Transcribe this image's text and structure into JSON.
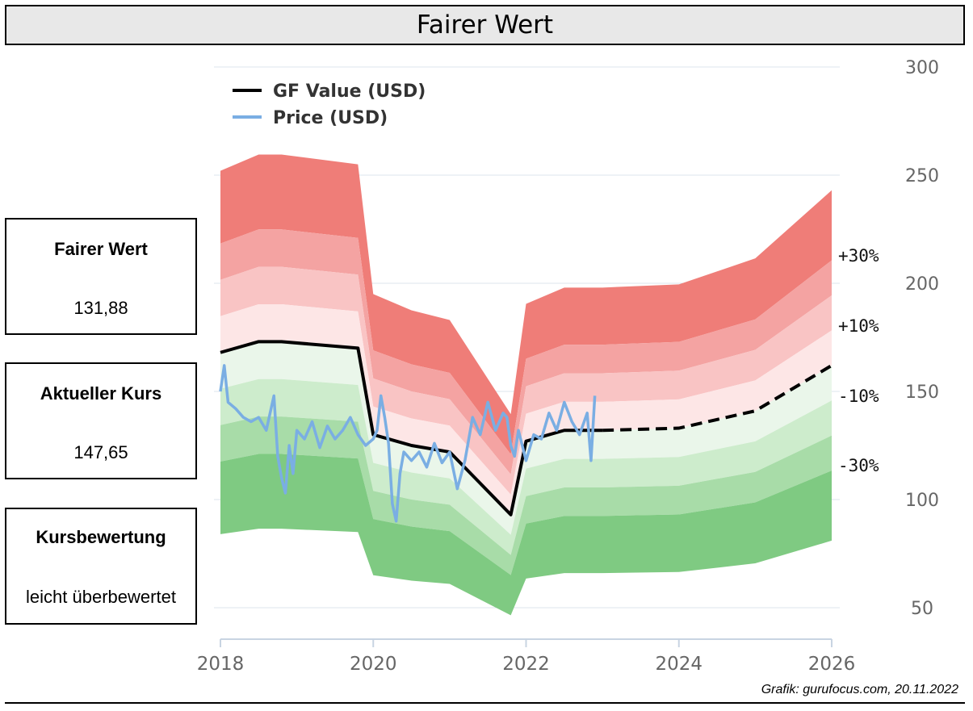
{
  "header": {
    "title": "Fairer Wert"
  },
  "cards": [
    {
      "label": "Fairer Wert",
      "value": "131,88"
    },
    {
      "label": "Aktueller Kurs",
      "value": "147,65"
    },
    {
      "label": "Kursbewertung",
      "value": "leicht überbewertet"
    }
  ],
  "source": "Grafik: gurufocus.com, 20.11.2022",
  "chart_data": {
    "type": "line",
    "legend": [
      {
        "name": "GF Value (USD)",
        "color": "#000000"
      },
      {
        "name": "Price (USD)",
        "color": "#7aaee3"
      }
    ],
    "legend_position": "top-left",
    "xlim": [
      2018,
      2026
    ],
    "ylim": [
      40,
      300
    ],
    "x_ticks": [
      "2018",
      "2020",
      "2022",
      "2024",
      "2026"
    ],
    "y_ticks": [
      "300",
      "250",
      "200",
      "150",
      "100",
      "50"
    ],
    "band_labels": [
      "+30%",
      "+10%",
      "-10%",
      "-30%"
    ],
    "grid": true,
    "gf_value": {
      "x": [
        2018.0,
        2018.5,
        2018.8,
        2019.8,
        2020.0,
        2020.5,
        2021.0,
        2021.8,
        2022.0,
        2022.5,
        2023.0,
        2024.0,
        2025.0,
        2026.0
      ],
      "y": [
        168,
        173,
        173,
        170,
        130,
        125,
        122,
        93,
        127,
        132,
        132,
        133,
        141,
        162
      ],
      "actual": [
        true,
        true,
        true,
        true,
        true,
        true,
        true,
        true,
        true,
        true,
        true,
        false,
        false,
        false
      ]
    },
    "price": {
      "x": [
        2018.0,
        2018.05,
        2018.1,
        2018.2,
        2018.3,
        2018.4,
        2018.5,
        2018.6,
        2018.7,
        2018.75,
        2018.8,
        2018.85,
        2018.9,
        2018.95,
        2019.0,
        2019.1,
        2019.2,
        2019.3,
        2019.4,
        2019.5,
        2019.6,
        2019.7,
        2019.8,
        2019.9,
        2020.0,
        2020.05,
        2020.1,
        2020.15,
        2020.2,
        2020.25,
        2020.3,
        2020.35,
        2020.4,
        2020.5,
        2020.6,
        2020.7,
        2020.8,
        2020.9,
        2021.0,
        2021.1,
        2021.2,
        2021.3,
        2021.4,
        2021.5,
        2021.6,
        2021.7,
        2021.75,
        2021.8,
        2021.85,
        2021.9,
        2022.0,
        2022.1,
        2022.2,
        2022.3,
        2022.4,
        2022.5,
        2022.6,
        2022.7,
        2022.8,
        2022.85,
        2022.9
      ],
      "y": [
        150,
        162,
        145,
        142,
        138,
        136,
        138,
        132,
        148,
        120,
        110,
        103,
        125,
        112,
        132,
        128,
        136,
        124,
        134,
        128,
        132,
        138,
        130,
        125,
        128,
        132,
        148,
        138,
        126,
        98,
        90,
        112,
        122,
        118,
        122,
        115,
        126,
        117,
        122,
        105,
        118,
        138,
        130,
        145,
        132,
        140,
        138,
        125,
        120,
        132,
        118,
        130,
        128,
        140,
        132,
        145,
        136,
        130,
        140,
        118,
        148
      ]
    }
  }
}
